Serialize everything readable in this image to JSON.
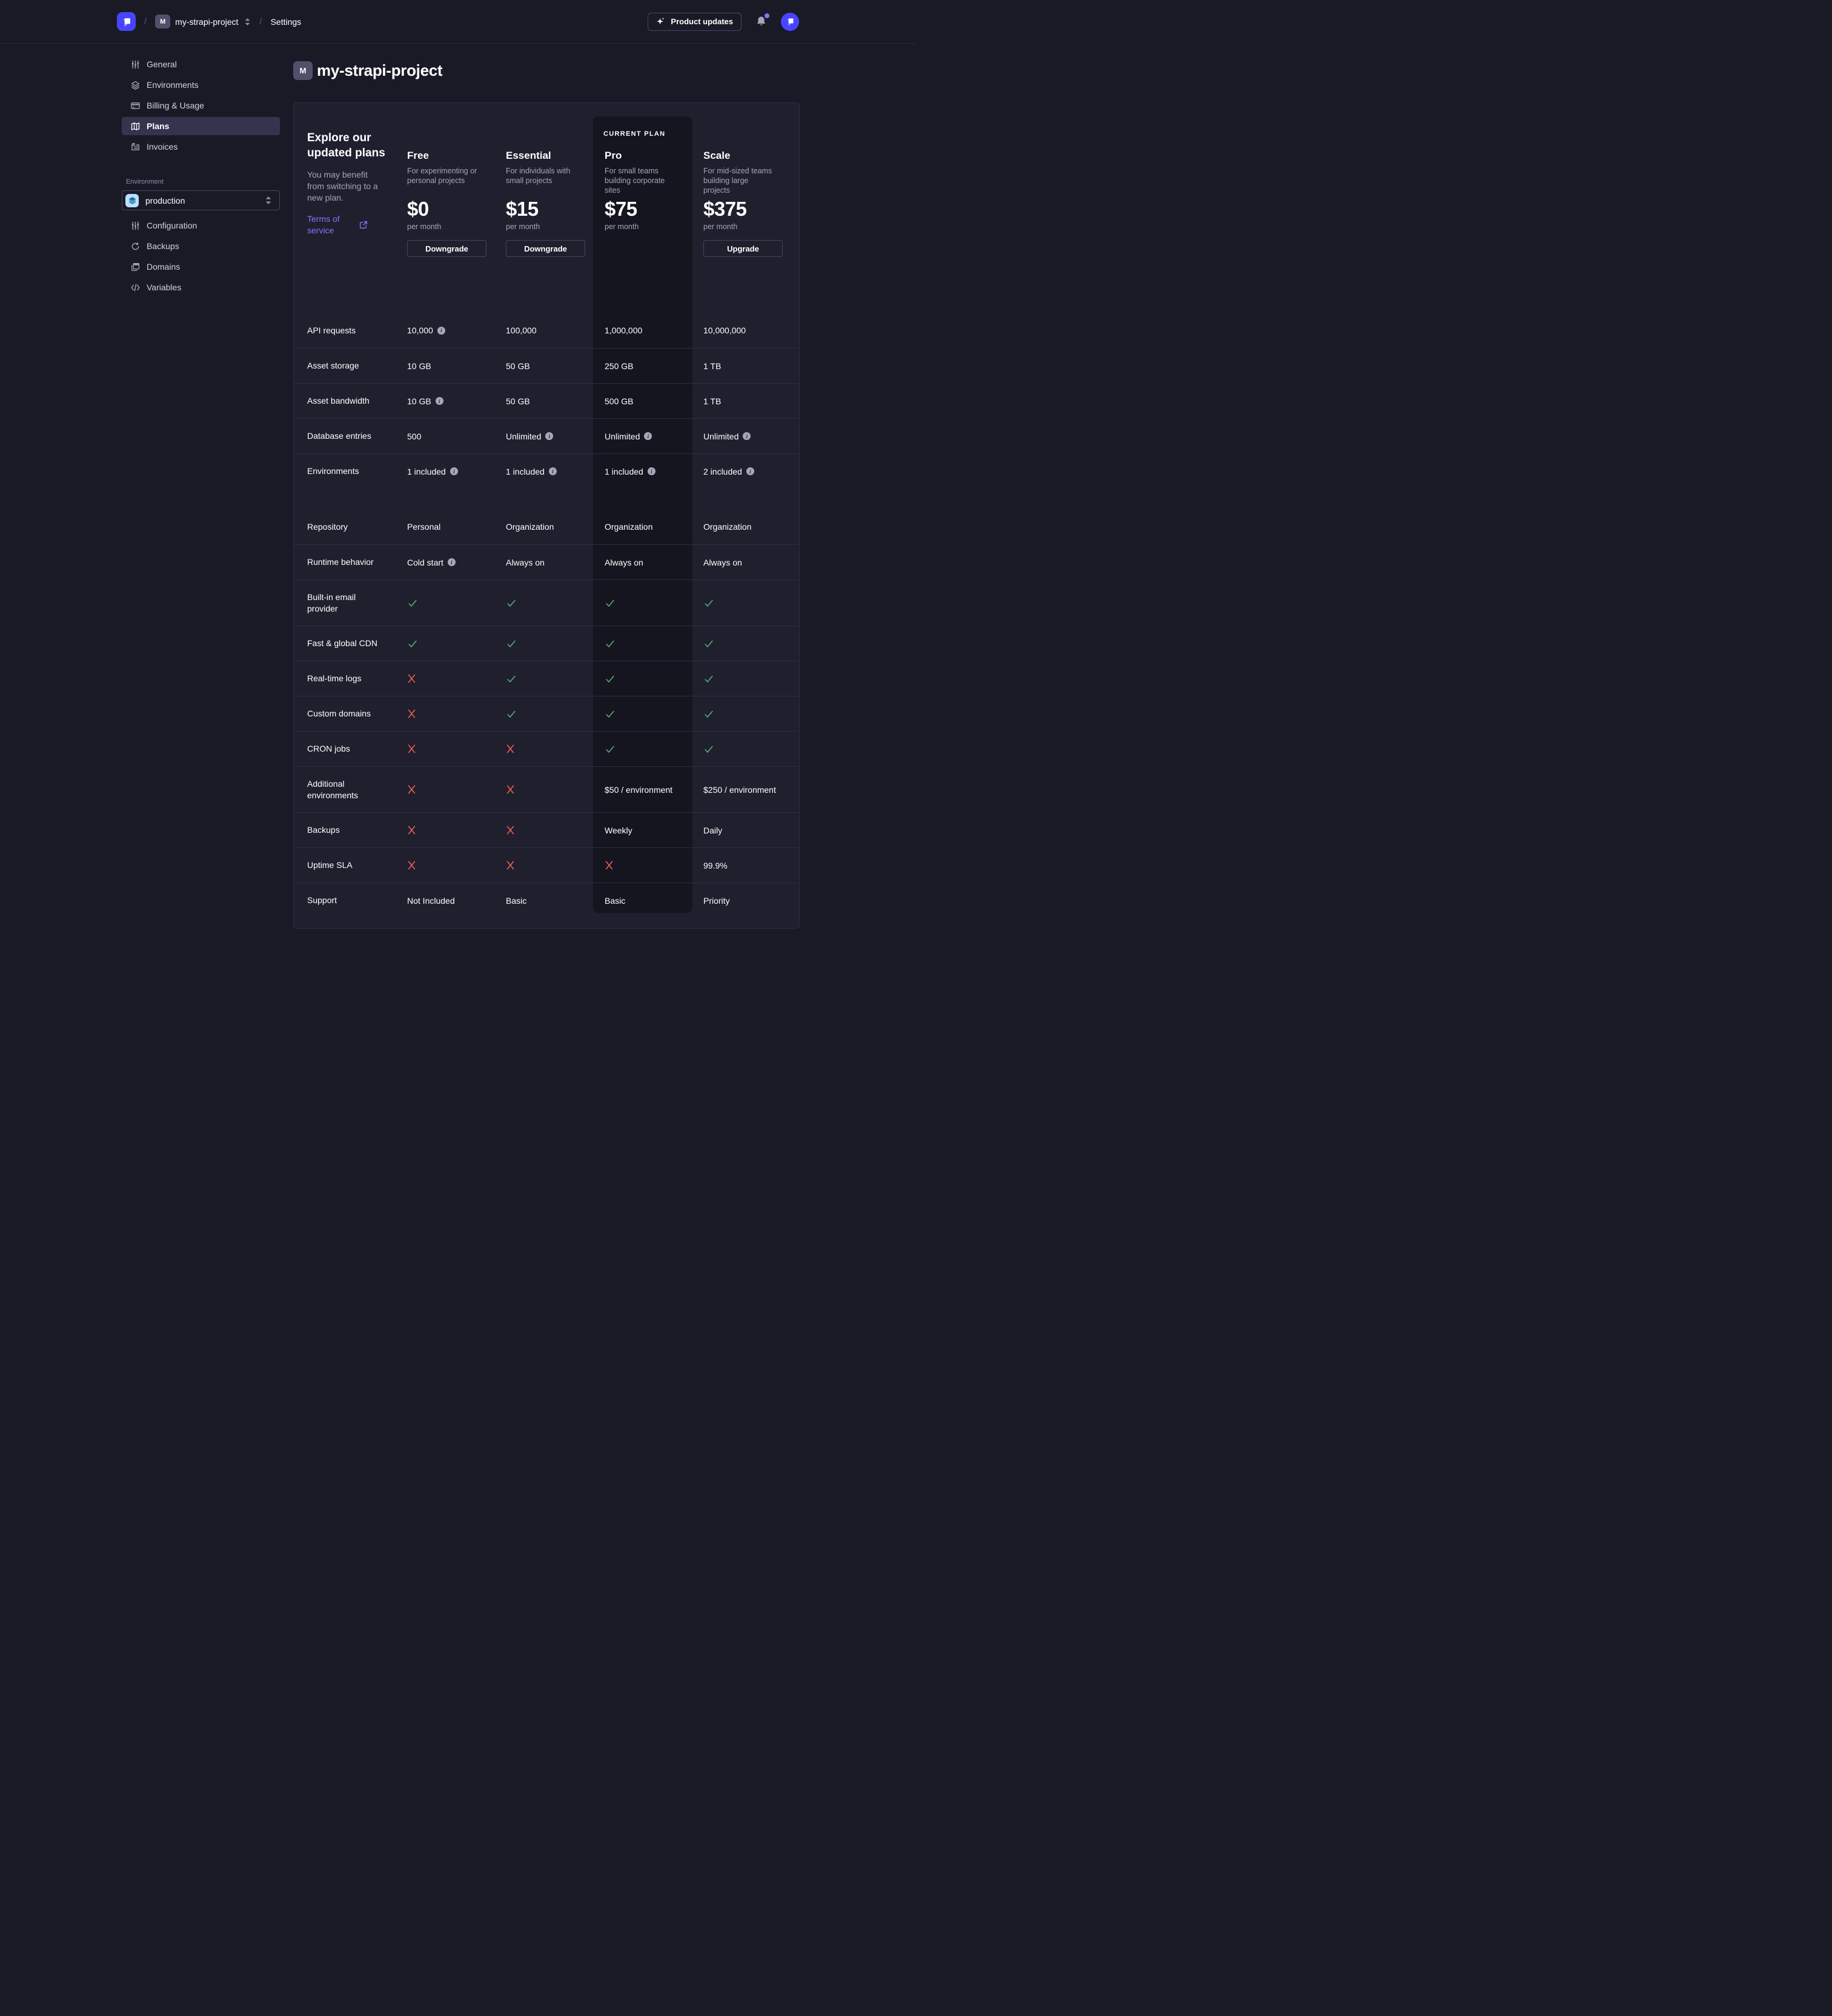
{
  "topbar": {
    "separator": "/",
    "project_initial": "M",
    "project_name": "my-strapi-project",
    "section": "Settings",
    "product_updates_label": "Product updates"
  },
  "sidebar": {
    "items": [
      {
        "label": "General"
      },
      {
        "label": "Environments"
      },
      {
        "label": "Billing & Usage"
      },
      {
        "label": "Plans"
      },
      {
        "label": "Invoices"
      }
    ],
    "active_item": "Plans",
    "environment": {
      "label": "Environment",
      "selected": "production"
    },
    "environment_items": [
      {
        "label": "Configuration"
      },
      {
        "label": "Backups"
      },
      {
        "label": "Domains"
      },
      {
        "label": "Variables"
      }
    ]
  },
  "page": {
    "project_initial": "M",
    "title": "my-strapi-project"
  },
  "plans_card": {
    "intro": {
      "title": "Explore our updated plans",
      "subtitle": "You may benefit from switching to a new plan.",
      "link": "Terms of service"
    },
    "current_plan_badge": "CURRENT PLAN",
    "plans": [
      {
        "name": "Free",
        "description": "For experimenting or personal projects",
        "price": "$0",
        "period": "per month",
        "button": "Downgrade",
        "current": false
      },
      {
        "name": "Essential",
        "description": "For individuals with small projects",
        "price": "$15",
        "period": "per month",
        "button": "Downgrade",
        "current": false
      },
      {
        "name": "Pro",
        "description": "For small teams building corporate sites",
        "price": "$75",
        "period": "per month",
        "button": null,
        "current": true
      },
      {
        "name": "Scale",
        "description": "For mid-sized teams building large projects",
        "price": "$375",
        "period": "per month",
        "button": "Upgrade",
        "current": false
      }
    ],
    "features": [
      {
        "label": "API requests",
        "section": "limits",
        "tall": false,
        "cells": [
          {
            "t": "10,000",
            "info": true
          },
          {
            "t": "100,000"
          },
          {
            "t": "1,000,000"
          },
          {
            "t": "10,000,000"
          }
        ]
      },
      {
        "label": "Asset storage",
        "section": "limits",
        "tall": false,
        "cells": [
          {
            "t": "10 GB"
          },
          {
            "t": "50 GB"
          },
          {
            "t": "250 GB"
          },
          {
            "t": "1 TB"
          }
        ]
      },
      {
        "label": "Asset bandwidth",
        "section": "limits",
        "tall": false,
        "cells": [
          {
            "t": "10 GB",
            "info": true
          },
          {
            "t": "50 GB"
          },
          {
            "t": "500 GB"
          },
          {
            "t": "1 TB"
          }
        ]
      },
      {
        "label": "Database entries",
        "section": "limits",
        "tall": false,
        "cells": [
          {
            "t": "500"
          },
          {
            "t": "Unlimited",
            "info": true
          },
          {
            "t": "Unlimited",
            "info": true
          },
          {
            "t": "Unlimited",
            "info": true
          }
        ]
      },
      {
        "label": "Environments",
        "section": "limits",
        "tall": false,
        "cells": [
          {
            "t": "1 included",
            "info": true
          },
          {
            "t": "1 included",
            "info": true
          },
          {
            "t": "1 included",
            "info": true
          },
          {
            "t": "2 included",
            "info": true
          }
        ]
      },
      {
        "label": "Repository",
        "section": "features",
        "tall": false,
        "cells": [
          {
            "t": "Personal"
          },
          {
            "t": "Organization"
          },
          {
            "t": "Organization"
          },
          {
            "t": "Organization"
          }
        ]
      },
      {
        "label": "Runtime behavior",
        "section": "features",
        "tall": false,
        "cells": [
          {
            "t": "Cold start",
            "info": true
          },
          {
            "t": "Always on"
          },
          {
            "t": "Always on"
          },
          {
            "t": "Always on"
          }
        ]
      },
      {
        "label": "Built-in email provider",
        "section": "features",
        "tall": true,
        "cells": [
          {
            "mark": "check"
          },
          {
            "mark": "check"
          },
          {
            "mark": "check"
          },
          {
            "mark": "check"
          }
        ]
      },
      {
        "label": "Fast & global CDN",
        "section": "features",
        "tall": false,
        "cells": [
          {
            "mark": "check"
          },
          {
            "mark": "check"
          },
          {
            "mark": "check"
          },
          {
            "mark": "check"
          }
        ]
      },
      {
        "label": "Real-time logs",
        "section": "features",
        "tall": false,
        "cells": [
          {
            "mark": "cross"
          },
          {
            "mark": "check"
          },
          {
            "mark": "check"
          },
          {
            "mark": "check"
          }
        ]
      },
      {
        "label": "Custom domains",
        "section": "features",
        "tall": false,
        "cells": [
          {
            "mark": "cross"
          },
          {
            "mark": "check"
          },
          {
            "mark": "check"
          },
          {
            "mark": "check"
          }
        ]
      },
      {
        "label": "CRON jobs",
        "section": "features",
        "tall": false,
        "cells": [
          {
            "mark": "cross"
          },
          {
            "mark": "cross"
          },
          {
            "mark": "check"
          },
          {
            "mark": "check"
          }
        ]
      },
      {
        "label": "Additional environments",
        "section": "features",
        "tall": true,
        "cells": [
          {
            "mark": "cross"
          },
          {
            "mark": "cross"
          },
          {
            "t": "$50 / environment"
          },
          {
            "t": "$250 / environment"
          }
        ]
      },
      {
        "label": "Backups",
        "section": "features",
        "tall": false,
        "cells": [
          {
            "mark": "cross"
          },
          {
            "mark": "cross"
          },
          {
            "t": "Weekly"
          },
          {
            "t": "Daily"
          }
        ]
      },
      {
        "label": "Uptime SLA",
        "section": "features",
        "tall": false,
        "cells": [
          {
            "mark": "cross"
          },
          {
            "mark": "cross"
          },
          {
            "mark": "cross"
          },
          {
            "t": "99.9%"
          }
        ]
      },
      {
        "label": "Support",
        "section": "features",
        "tall": false,
        "cells": [
          {
            "t": "Not Included"
          },
          {
            "t": "Basic"
          },
          {
            "t": "Basic"
          },
          {
            "t": "Priority"
          }
        ]
      }
    ]
  },
  "colors": {
    "accent": "#4945ff",
    "link": "#7b79ff",
    "success": "#5cb176",
    "danger": "#ee5e52",
    "background": "#1a1a27",
    "card": "#1f1f2e",
    "current_plan_overlay": "#15151f"
  }
}
